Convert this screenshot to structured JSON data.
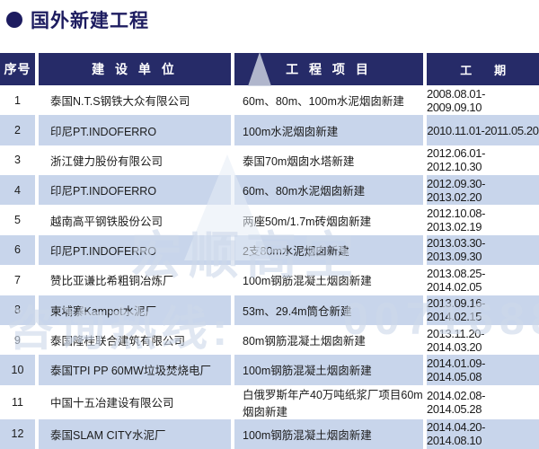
{
  "title": "国外新建工程",
  "header": {
    "no": "序号",
    "unit": "建 设 单 位",
    "project": "工 程 项 目",
    "period": "工　　期"
  },
  "rows": [
    {
      "no": "1",
      "unit": "泰国N.T.S钢铁大众有限公司",
      "project": "60m、80m、100m水泥烟囱新建",
      "period": "2008.08.01-2009.09.10"
    },
    {
      "no": "2",
      "unit": "印尼PT.INDOFERRO",
      "project": "100m水泥烟囱新建",
      "period": "2010.11.01-2011.05.20"
    },
    {
      "no": "3",
      "unit": "浙江健力股份有限公司",
      "project": "泰国70m烟囱水塔新建",
      "period": "2012.06.01-2012.10.30"
    },
    {
      "no": "4",
      "unit": "印尼PT.INDOFERRO",
      "project": "60m、80m水泥烟囱新建",
      "period": "2012.09.30-2013.02.20"
    },
    {
      "no": "5",
      "unit": "越南高平钢铁股份公司",
      "project": "两座50m/1.7m砖烟囱新建",
      "period": "2012.10.08-2013.02.19"
    },
    {
      "no": "6",
      "unit": "印尼PT.INDOFERRO",
      "project": "2支80m水泥烟囱新建",
      "period": "2013.03.30-2013.09.30"
    },
    {
      "no": "7",
      "unit": "赞比亚谦比希粗铜冶炼厂",
      "project": "100m钢筋混凝土烟囱新建",
      "period": "2013.08.25-2014.02.05"
    },
    {
      "no": "8",
      "unit": "柬埔寨Kampot水泥厂",
      "project": "53m、29.4m筒仓新建",
      "period": "2013.09.16-2014.02.15"
    },
    {
      "no": "9",
      "unit": "泰国隆桂联合建筑有限公司",
      "project": "80m钢筋混凝土烟囱新建",
      "period": "2013.11.20-2014.03.20"
    },
    {
      "no": "10",
      "unit": "泰国TPI PP 60MW垃圾焚烧电厂",
      "project": "100m钢筋混凝土烟囱新建",
      "period": "2014.01.09-2014.05.08"
    },
    {
      "no": "11",
      "unit": "中国十五冶建设有限公司",
      "project": "白俄罗斯年产40万吨纸浆厂项目60m烟囱新建",
      "period": "2014.02.08-2014.05.28"
    },
    {
      "no": "12",
      "unit": "泰国SLAM CITY水泥厂",
      "project": "100m钢筋混凝土烟囱新建",
      "period": "2014.04.20-2014.08.10"
    }
  ],
  "watermark": {
    "text1": "宏顺高空",
    "text2": "咨询热线:",
    "text3": "0071688"
  },
  "colors": {
    "header_bg": "#262b68",
    "row_alt_bg": "#c8d5eb",
    "title_color": "#1d1c60",
    "body_text": "#1b1b1b",
    "watermark": "#cdd8ea"
  }
}
